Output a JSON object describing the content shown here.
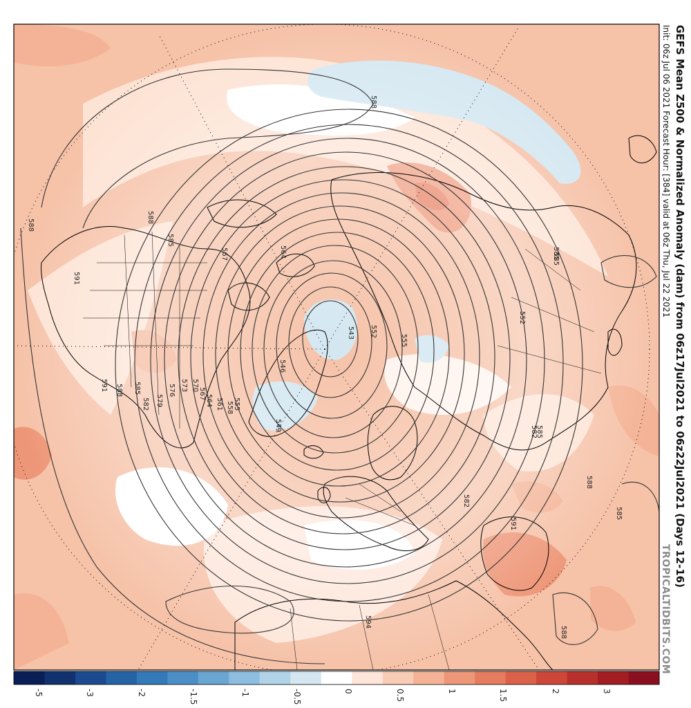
{
  "title": "GEFS Mean Z500 & Normalized Anomaly (dam) from 06z17Jul2021 to 06z22Jul2021 (Days 12-16)",
  "subtitle": "Init: 06z Jul 06 2021   Forecast Hour: [384]   valid at 06z Thu, Jul 22 2021",
  "credit": "TROPICALTIDBITS.COM",
  "colorbar": {
    "colors": [
      "#0a1f55",
      "#12326f",
      "#1b4b8e",
      "#2563a6",
      "#3479b8",
      "#4b8fc6",
      "#6aa6d2",
      "#8dbddf",
      "#b1d3e8",
      "#d4e7f1",
      "#ffffff",
      "#fde6d9",
      "#f9cdb5",
      "#f4b396",
      "#ee9778",
      "#e67c5e",
      "#db6248",
      "#cc4738",
      "#b8302b",
      "#a21e23",
      "#8a1020"
    ],
    "labels": [
      "-5",
      "-3",
      "-2",
      "-1.5",
      "-1",
      "-0.5",
      "0",
      "0.5",
      "1",
      "1.5",
      "2",
      "3"
    ]
  },
  "contour_labels": [
    "588",
    "588",
    "588",
    "591",
    "585",
    "567",
    "564",
    "585",
    "543",
    "546",
    "549",
    "552",
    "555",
    "591",
    "588",
    "585",
    "582",
    "579",
    "576",
    "573",
    "570",
    "567",
    "564",
    "561",
    "558",
    "555",
    "552",
    "582",
    "585",
    "588",
    "585",
    "591",
    "594",
    "588",
    "582",
    "585"
  ]
}
